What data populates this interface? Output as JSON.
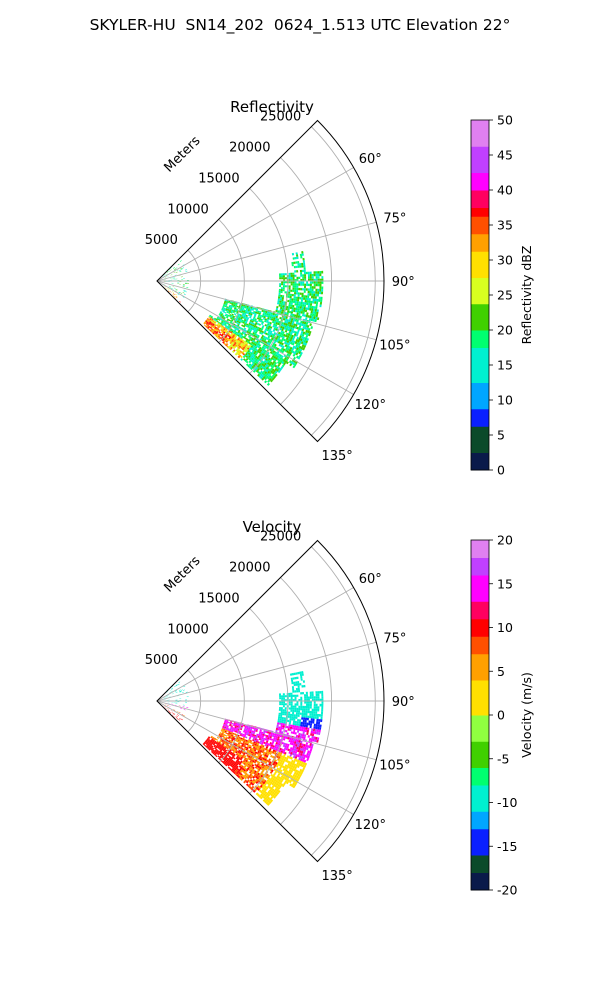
{
  "figure": {
    "title": "SKYLER-HU  SN14_202  0624_1.513 UTC Elevation 22°"
  },
  "chart_data": [
    {
      "type": "heatmap",
      "subtype": "polar-sector",
      "title": "Reflectivity",
      "radial_axis_label": "Meters",
      "radial_ticks": [
        5000,
        10000,
        15000,
        20000,
        25000
      ],
      "radial_range": [
        0,
        26000
      ],
      "angle_range_deg": [
        45,
        135
      ],
      "angle_ticks": [
        "60°",
        "75°",
        "90°",
        "105°",
        "120°",
        "135°"
      ],
      "grid": true,
      "colorbar": {
        "label": "Reflectivity dBZ",
        "range": [
          0,
          50
        ],
        "ticks": [
          0,
          5,
          10,
          15,
          20,
          25,
          30,
          35,
          40,
          45,
          50
        ]
      },
      "color_stops": [
        [
          0,
          "#0a1a4a"
        ],
        [
          3,
          "#0b4a2a"
        ],
        [
          6,
          "#0a20ff"
        ],
        [
          9,
          "#00a6ff"
        ],
        [
          13,
          "#00f0d0"
        ],
        [
          17,
          "#00ff70"
        ],
        [
          20,
          "#40d000"
        ],
        [
          24,
          "#d8ff20"
        ],
        [
          28,
          "#ffe000"
        ],
        [
          31,
          "#ffa000"
        ],
        [
          34,
          "#ff5000"
        ],
        [
          36,
          "#ff0000"
        ],
        [
          38,
          "#ff0060"
        ],
        [
          40,
          "#ff00ff"
        ],
        [
          43,
          "#c040ff"
        ],
        [
          46,
          "#e080f0"
        ],
        [
          50,
          "#ffe0ff"
        ]
      ]
    },
    {
      "type": "heatmap",
      "subtype": "polar-sector",
      "title": "Velocity",
      "radial_axis_label": "Meters",
      "radial_ticks": [
        5000,
        10000,
        15000,
        20000,
        25000
      ],
      "radial_range": [
        0,
        26000
      ],
      "angle_range_deg": [
        45,
        135
      ],
      "angle_ticks": [
        "60°",
        "75°",
        "90°",
        "105°",
        "120°",
        "135°"
      ],
      "grid": true,
      "colorbar": {
        "label": "Velocity (m/s)",
        "range": [
          -20,
          20
        ],
        "ticks": [
          -20,
          -15,
          -10,
          -5,
          0,
          5,
          10,
          15,
          20
        ]
      },
      "color_stops": [
        [
          -20,
          "#0a1a4a"
        ],
        [
          -18,
          "#0b4a2a"
        ],
        [
          -16,
          "#0a20ff"
        ],
        [
          -13,
          "#00a6ff"
        ],
        [
          -11,
          "#00f0d0"
        ],
        [
          -8,
          "#00ff70"
        ],
        [
          -6,
          "#40d000"
        ],
        [
          -3,
          "#90ff40"
        ],
        [
          0,
          "#ffe000"
        ],
        [
          4,
          "#ffa000"
        ],
        [
          7,
          "#ff5000"
        ],
        [
          9,
          "#ff0000"
        ],
        [
          11,
          "#ff0060"
        ],
        [
          13,
          "#ff00ff"
        ],
        [
          16,
          "#c040ff"
        ],
        [
          18,
          "#e080f0"
        ],
        [
          20,
          "#ffe0ff"
        ]
      ]
    }
  ]
}
